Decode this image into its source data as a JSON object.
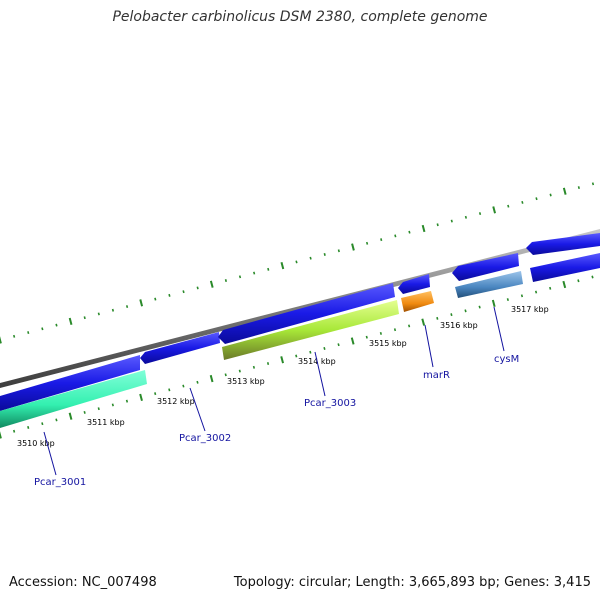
{
  "title": "Pelobacter carbinolicus DSM 2380, complete genome",
  "accession": "Accession: NC_007498",
  "summary": "Topology: circular; Length: 3,665,893 bp; Genes: 3,415",
  "colors": {
    "backbone": "#7a7a7a",
    "cds_blue": "#1a1ae6",
    "cds_teal": "#33f0b0",
    "cds_lime": "#a8e838",
    "cds_olive": "#6b7a28",
    "cds_orange": "#f08a10",
    "cds_steel": "#4a86c0",
    "ticks": "#2a8a2a",
    "label": "#1414a0"
  },
  "ticks": {
    "labels": [
      "3510 kbp",
      "3511 kbp",
      "3512 kbp",
      "3513 kbp",
      "3514 kbp",
      "3515 kbp",
      "3516 kbp",
      "3517 kbp"
    ]
  },
  "genes": [
    {
      "name": "Pcar_3001"
    },
    {
      "name": "Pcar_3002"
    },
    {
      "name": "Pcar_3003"
    },
    {
      "name": "marR"
    },
    {
      "name": "cysM"
    }
  ]
}
